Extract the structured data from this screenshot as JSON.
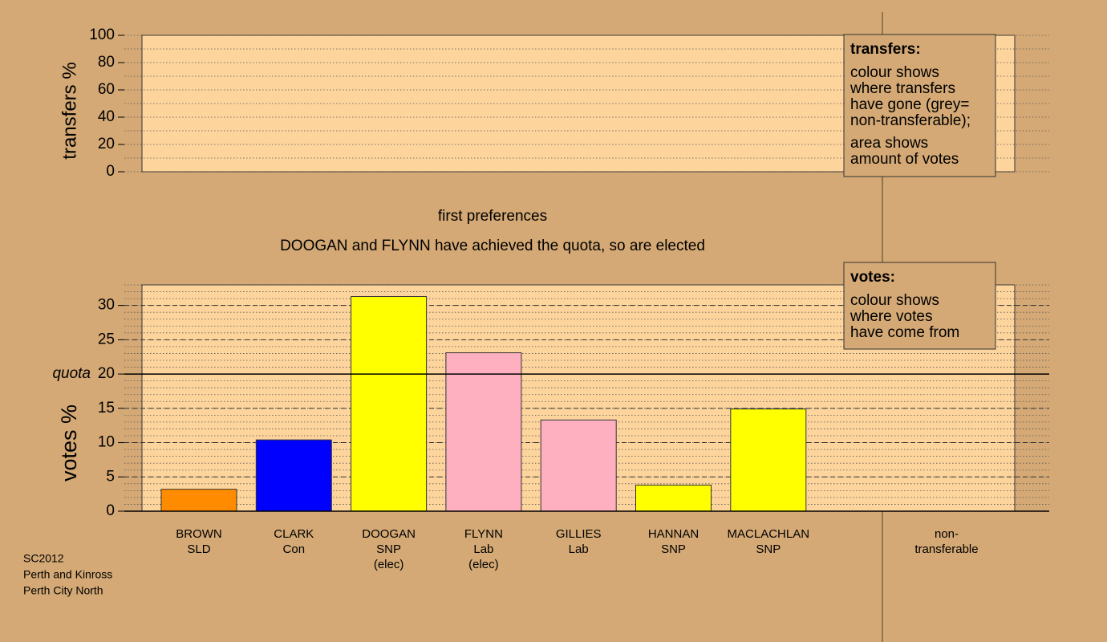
{
  "chart_data": [
    {
      "type": "bar",
      "ylabel": "transfers %",
      "ylim": [
        0,
        100
      ],
      "yticks": [
        0,
        20,
        40,
        60,
        80,
        100
      ],
      "minor_step": 10,
      "grid": "dotted",
      "legend": {
        "title": "transfers:",
        "paragraphs": [
          [
            "colour shows",
            "where transfers",
            "have gone (grey=",
            "non-transferable);"
          ],
          [
            "area shows",
            "amount of votes"
          ]
        ]
      }
    },
    {
      "type": "bar",
      "title": "first preferences",
      "subtitle": "DOOGAN and FLYNN have achieved the quota, so are elected",
      "ylabel": "votes %",
      "categories": [
        [
          "BROWN",
          "SLD"
        ],
        [
          "CLARK",
          "Con"
        ],
        [
          "DOOGAN",
          "SNP",
          "(elec)"
        ],
        [
          "FLYNN",
          "Lab",
          "(elec)"
        ],
        [
          "GILLIES",
          "Lab"
        ],
        [
          "HANNAN",
          "SNP"
        ],
        [
          "MACLACHLAN",
          "SNP"
        ]
      ],
      "values": [
        3.2,
        10.4,
        31.3,
        23.1,
        13.3,
        3.8,
        14.9
      ],
      "colors": [
        "#ff8c00",
        "#0000ff",
        "#ffff00",
        "#ffb0c0",
        "#ffb0c0",
        "#ffff00",
        "#ffff00"
      ],
      "ylim": [
        0,
        33
      ],
      "yticks": [
        0,
        5,
        10,
        15,
        20,
        25,
        30
      ],
      "minor_step": 1,
      "grid": "dashed",
      "quota": {
        "value": 20,
        "label": "quota"
      },
      "extra_category": [
        "non-",
        "transferable"
      ],
      "legend": {
        "title": "votes:",
        "paragraphs": [
          [
            "colour shows",
            "where votes",
            "have come from"
          ]
        ]
      }
    }
  ],
  "footer": [
    "SC2012",
    "Perth and Kinross",
    "Perth City North"
  ]
}
